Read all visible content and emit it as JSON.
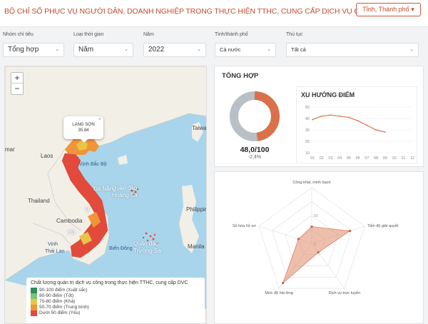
{
  "header": {
    "title": "BỘ CHỈ SỐ PHỤC VỤ NGƯỜI DÂN, DOANH NGHIỆP TRONG THỰC HIỆN TTHC, CUNG CẤP DỊCH VỤ CÔNG",
    "province_button": "Tỉnh, Thành phố"
  },
  "filters": [
    {
      "label": "Nhóm chỉ tiêu",
      "value": "Tổng hợp"
    },
    {
      "label": "Loại thời gian",
      "value": "Năm"
    },
    {
      "label": "Năm",
      "value": "2022"
    },
    {
      "label": "Tỉnh/thành phố",
      "value": "Cả nước"
    },
    {
      "label": "Thủ tục",
      "value": "Tất cả"
    }
  ],
  "map": {
    "zoom_in": "+",
    "zoom_out": "−",
    "labels": {
      "laos": "Laos",
      "thailand": "Thailand",
      "cambodia": "Cambodia",
      "mar": "mar",
      "taiwan": "Taiwan",
      "philippines": "Philippin",
      "gulf_tonkin": "Vịnh Bắc Bộ",
      "gulf_thailand_1": "Vịnh",
      "gulf_thailand_2": "Thái Lan",
      "east_sea": "Biển Đông",
      "hoang_sa_1": "Quần đảo",
      "hoang_sa_2": "Hoàng Sa",
      "truong_sa_1": "Quần đảo",
      "truong_sa_2": "Trường Sa",
      "danang": "Đà Nẵng",
      "vietnam": "V",
      "hcm": "Hồ",
      "manila": "Manila"
    },
    "popup": {
      "name": "LẠNG SƠN",
      "value": "35.84",
      "close": "×"
    },
    "legend": {
      "title": "Chất lượng quản trị dịch vụ công trong thực hiện TTHC, cung cấp DVC",
      "items": [
        {
          "label": "90-100 điểm (Xuất sắc)",
          "color": "#2e8b57"
        },
        {
          "label": "80-90 điểm (Tốt)",
          "color": "#7cc47c"
        },
        {
          "label": "70-80 điểm (Khá)",
          "color": "#e8c547"
        },
        {
          "label": "50-70 điểm (Trung bình)",
          "color": "#f0953a"
        },
        {
          "label": "Dưới 50 điểm (Yếu)",
          "color": "#e24a3b"
        }
      ]
    }
  },
  "summary": {
    "title": "TỔNG HỢP",
    "score": "48,0/100",
    "change": "-2,4%",
    "fill_percent": 48,
    "fill_color": "#d9714a",
    "track_color": "#b8bfc7"
  },
  "trend": {
    "title": "XU HƯỚNG ĐIỂM"
  },
  "chart_data": [
    {
      "type": "line",
      "title": "XU HƯỚNG ĐIỂM",
      "x": [
        "01",
        "02",
        "03",
        "04",
        "05",
        "06",
        "07",
        "08",
        "09",
        "10",
        "11",
        "12"
      ],
      "y_ticks": [
        10,
        20,
        30,
        40,
        50
      ],
      "ylim": [
        10,
        50
      ],
      "series": [
        {
          "values": [
            39,
            42,
            43,
            42,
            41,
            38,
            34,
            30,
            28,
            null,
            null,
            null
          ],
          "color": "#d9714a"
        }
      ],
      "grid": true
    },
    {
      "type": "radar",
      "axes": [
        "Công khai, minh bạch",
        "Tiến độ giải quyết",
        "Dịch vụ trực tuyến",
        "Mức độ hài lòng",
        "Số hóa hồ sơ"
      ],
      "ticks": [
        0,
        50,
        100
      ],
      "tick_labels": [
        "0",
        "50"
      ],
      "values": [
        30,
        72,
        20,
        88,
        25
      ],
      "color": "#e08a6a"
    }
  ]
}
